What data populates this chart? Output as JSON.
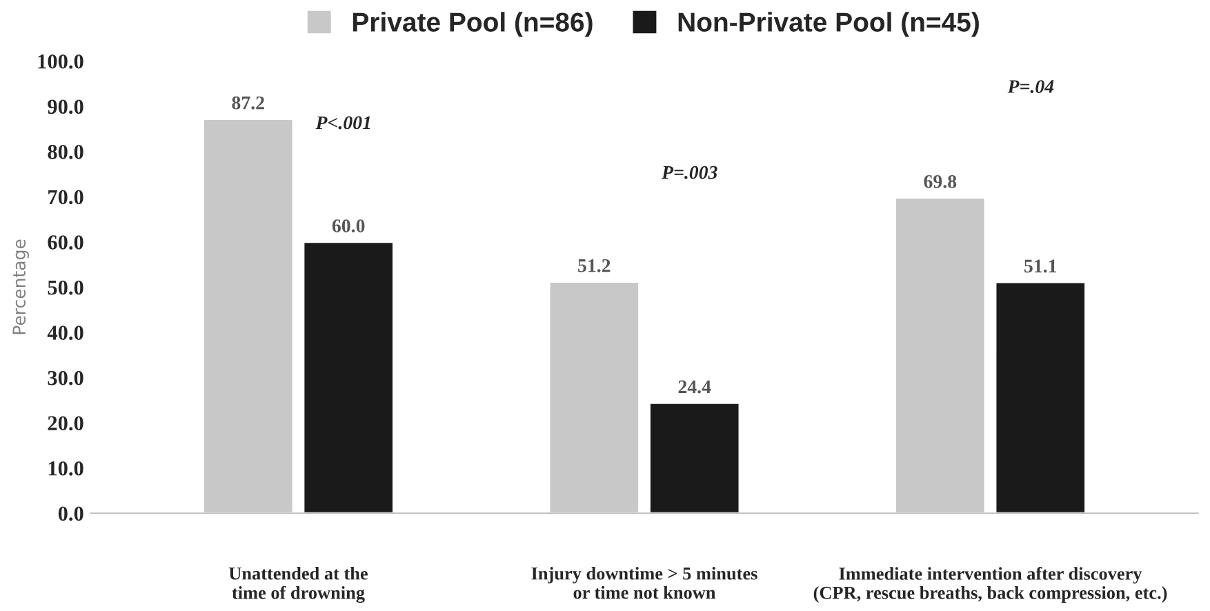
{
  "chart_data": {
    "type": "bar",
    "ylabel": "Percentage",
    "categories": [
      "Unattended at the\ntime of drowning",
      "Injury downtime > 5 minutes\nor time not known",
      "Immediate intervention after discovery\n(CPR, rescue breaths, back compression, etc.)"
    ],
    "series": [
      {
        "name": "Private Pool (n=86)",
        "color": "#c8c8c8",
        "values": [
          87.2,
          51.2,
          69.8
        ]
      },
      {
        "name": "Non-Private Pool (n=45)",
        "color": "#1a1a1a",
        "values": [
          60.0,
          24.4,
          51.1
        ]
      }
    ],
    "ylim": [
      0,
      100
    ],
    "yticks": [
      {
        "value": 0,
        "label": "0.0"
      },
      {
        "value": 10,
        "label": "10.0"
      },
      {
        "value": 20,
        "label": "20.0"
      },
      {
        "value": 30,
        "label": "30.0"
      },
      {
        "value": 40,
        "label": "40.0"
      },
      {
        "value": 50,
        "label": "50.0"
      },
      {
        "value": 60,
        "label": "60.0"
      },
      {
        "value": 70,
        "label": "70.0"
      },
      {
        "value": 80,
        "label": "80.0"
      },
      {
        "value": 90,
        "label": "90.0"
      },
      {
        "value": 100,
        "label": "100.0"
      }
    ],
    "value_labels": [
      [
        "87.2",
        "51.2",
        "69.8"
      ],
      [
        "60.0",
        "24.4",
        "51.1"
      ]
    ],
    "annotations": [
      "P<.001",
      "P=.003",
      "P=.04"
    ],
    "grid": false,
    "legend": "top"
  }
}
